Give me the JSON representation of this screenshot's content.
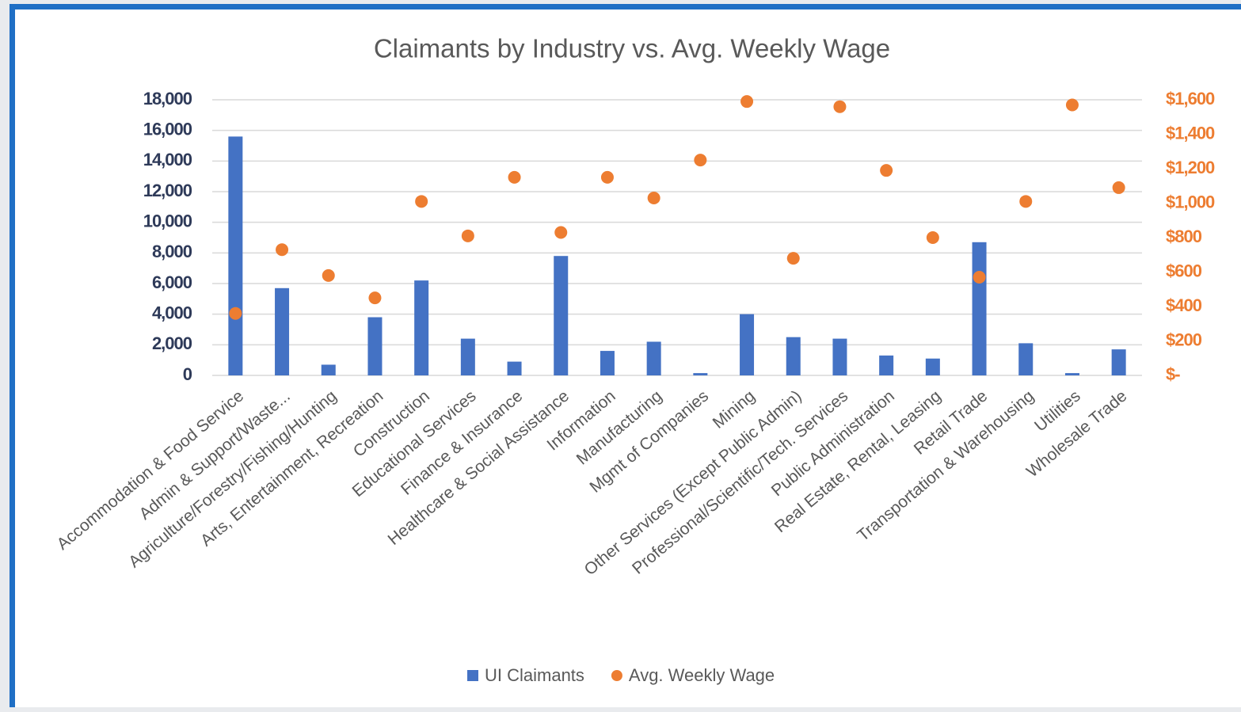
{
  "chart_data": {
    "type": "bar",
    "title": "Claimants by Industry vs. Avg. Weekly Wage",
    "categories": [
      "Accommodation & Food Service",
      "Admin & Support/Waste...",
      "Agriculture/Forestry/Fishing/Hunting",
      "Arts, Entertainment, Recreation",
      "Construction",
      "Educational Services",
      "Finance & Insurance",
      "Healthcare & Social Assistance",
      "Information",
      "Manufacturing",
      "Mgmt of Companies",
      "Mining",
      "Other Services (Except Public Admin)",
      "Professional/Scientific/Tech. Services",
      "Public Administration",
      "Real Estate, Rental, Leasing",
      "Retail Trade",
      "Transportation & Warehousing",
      "Utilities",
      "Wholesale Trade"
    ],
    "series": [
      {
        "name": "UI Claimants",
        "type": "bar",
        "color": "#4472c4",
        "values": [
          15600,
          5700,
          700,
          3800,
          6200,
          2400,
          900,
          7800,
          1600,
          2200,
          150,
          4000,
          2500,
          2400,
          1300,
          1100,
          8700,
          2100,
          150,
          1700
        ]
      },
      {
        "name": "Avg. Weekly Wage",
        "type": "scatter",
        "axis": "y2",
        "color": "#ed7d31",
        "values": [
          360,
          730,
          580,
          450,
          1010,
          810,
          1150,
          830,
          1150,
          1030,
          1250,
          1590,
          680,
          1560,
          1190,
          800,
          570,
          1010,
          1570,
          1090
        ]
      }
    ],
    "ylim": [
      0,
      18000
    ],
    "yticks": [
      0,
      {
        "value": 2000,
        "label": "2,000"
      },
      {
        "value": 4000,
        "label": "4,000"
      },
      {
        "value": 6000,
        "label": "6,000"
      },
      {
        "value": 8000,
        "label": "8,000"
      },
      {
        "value": 10000,
        "label": "10,000"
      },
      {
        "value": 12000,
        "label": "12,000"
      },
      {
        "value": 14000,
        "label": "14,000"
      },
      {
        "value": 16000,
        "label": "16,000"
      },
      {
        "value": 18000,
        "label": "18,000"
      }
    ],
    "y2lim": [
      0,
      1600
    ],
    "y2ticks": [
      {
        "value": 0,
        "label": "$-"
      },
      {
        "value": 200,
        "label": "$200"
      },
      {
        "value": 400,
        "label": "$400"
      },
      {
        "value": 600,
        "label": "$600"
      },
      {
        "value": 800,
        "label": "$800"
      },
      {
        "value": 1000,
        "label": "$1,000"
      },
      {
        "value": 1200,
        "label": "$1,200"
      },
      {
        "value": 1400,
        "label": "$1,400"
      },
      {
        "value": 1600,
        "label": "$1,600"
      }
    ],
    "grid": true,
    "legend": "bottom"
  }
}
